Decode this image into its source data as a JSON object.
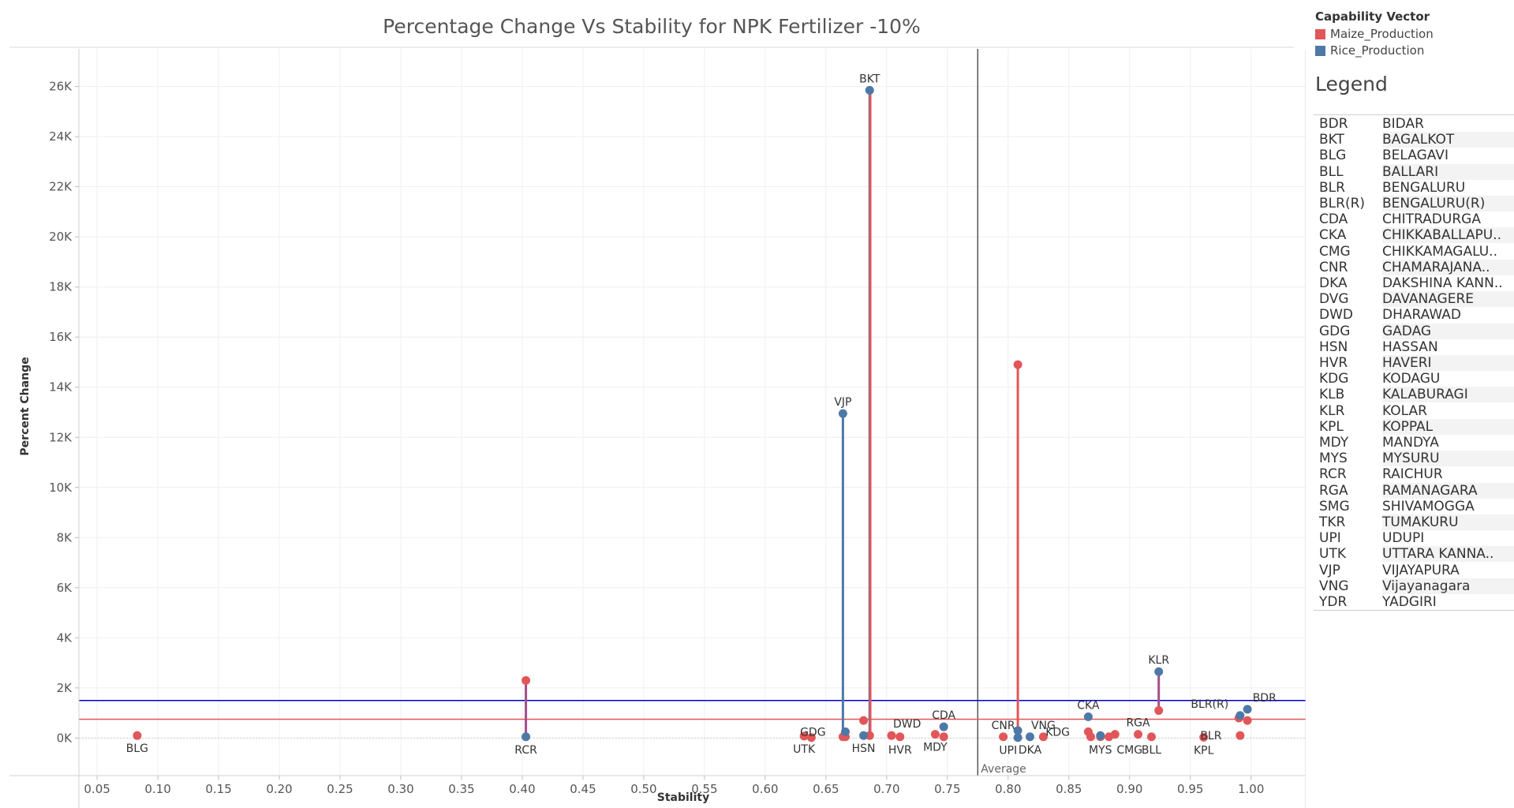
{
  "chart_data": {
    "type": "scatter",
    "title": "Percentage Change Vs Stability for NPK Fertilizer -10%",
    "xlabel": "Stability",
    "ylabel": "Percent Change",
    "xlim": [
      0.035,
      1.045
    ],
    "ylim": [
      -1500,
      27500
    ],
    "x_ticks": [
      {
        "value": 0.05,
        "label": "0.05"
      },
      {
        "value": 0.1,
        "label": "0.10"
      },
      {
        "value": 0.15,
        "label": "0.15"
      },
      {
        "value": 0.2,
        "label": "0.20"
      },
      {
        "value": 0.25,
        "label": "0.25"
      },
      {
        "value": 0.3,
        "label": "0.30"
      },
      {
        "value": 0.35,
        "label": "0.35"
      },
      {
        "value": 0.4,
        "label": "0.40"
      },
      {
        "value": 0.45,
        "label": "0.45"
      },
      {
        "value": 0.5,
        "label": "0.50"
      },
      {
        "value": 0.55,
        "label": "0.55"
      },
      {
        "value": 0.6,
        "label": "0.60"
      },
      {
        "value": 0.65,
        "label": "0.65"
      },
      {
        "value": 0.7,
        "label": "0.70"
      },
      {
        "value": 0.75,
        "label": "0.75"
      },
      {
        "value": 0.8,
        "label": "0.80"
      },
      {
        "value": 0.85,
        "label": "0.85"
      },
      {
        "value": 0.9,
        "label": "0.90"
      },
      {
        "value": 0.95,
        "label": "0.95"
      },
      {
        "value": 1.0,
        "label": "1.00"
      }
    ],
    "y_ticks": [
      {
        "value": 0,
        "label": "0K"
      },
      {
        "value": 2000,
        "label": "2K"
      },
      {
        "value": 4000,
        "label": "4K"
      },
      {
        "value": 6000,
        "label": "6K"
      },
      {
        "value": 8000,
        "label": "8K"
      },
      {
        "value": 10000,
        "label": "10K"
      },
      {
        "value": 12000,
        "label": "12K"
      },
      {
        "value": 14000,
        "label": "14K"
      },
      {
        "value": 16000,
        "label": "16K"
      },
      {
        "value": 18000,
        "label": "18K"
      },
      {
        "value": 20000,
        "label": "20K"
      },
      {
        "value": 22000,
        "label": "22K"
      },
      {
        "value": 24000,
        "label": "24K"
      },
      {
        "value": 26000,
        "label": "26K"
      }
    ],
    "grid": true,
    "legend": {
      "title": "Capability Vector",
      "position": "top-right",
      "entries": [
        {
          "name": "Maize_Production",
          "color": "#e15759"
        },
        {
          "name": "Rice_Production",
          "color": "#4e79a7"
        }
      ]
    },
    "reference_lines": {
      "average_x": {
        "value": 0.775,
        "label": "Average",
        "color": "#555555"
      },
      "rice_average_y": {
        "value": 1500,
        "color": "#0000cc"
      },
      "maize_average_y": {
        "value": 750,
        "color": "#e15759"
      }
    },
    "series": [
      {
        "name": "Maize_Production",
        "color": "#e15759",
        "points": [
          {
            "code": "BLG",
            "x": 0.083,
            "y": 100
          },
          {
            "code": "RCR",
            "x": 0.403,
            "y": 2300
          },
          {
            "code": "UTK",
            "x": 0.632,
            "y": 80
          },
          {
            "code": "UTK",
            "x": 0.638,
            "y": 20
          },
          {
            "code": "GDG",
            "x": 0.664,
            "y": 50
          },
          {
            "code": "VJP",
            "x": 0.666,
            "y": 50
          },
          {
            "code": "HSN",
            "x": 0.681,
            "y": 700
          },
          {
            "code": "BKT",
            "x": 0.686,
            "y": 100
          },
          {
            "code": "DWD",
            "x": 0.704,
            "y": 100
          },
          {
            "code": "HVR",
            "x": 0.711,
            "y": 50
          },
          {
            "code": "MDY",
            "x": 0.74,
            "y": 150
          },
          {
            "code": "CDA",
            "x": 0.747,
            "y": 50
          },
          {
            "code": "CNR",
            "x": 0.796,
            "y": 50
          },
          {
            "code": "UPI",
            "x": 0.808,
            "y": 14900
          },
          {
            "code": "VNG",
            "x": 0.829,
            "y": 50
          },
          {
            "code": "KDG",
            "x": 0.866,
            "y": 250
          },
          {
            "code": "CKA",
            "x": 0.868,
            "y": 50
          },
          {
            "code": "MYS",
            "x": 0.876,
            "y": 50
          },
          {
            "code": "MYS",
            "x": 0.883,
            "y": 50
          },
          {
            "code": "CMG",
            "x": 0.888,
            "y": 150
          },
          {
            "code": "RGA",
            "x": 0.907,
            "y": 150
          },
          {
            "code": "BLL",
            "x": 0.918,
            "y": 50
          },
          {
            "code": "KLR",
            "x": 0.924,
            "y": 1100
          },
          {
            "code": "KPL",
            "x": 0.961,
            "y": 30
          },
          {
            "code": "BLR(R)",
            "x": 0.99,
            "y": 800
          },
          {
            "code": "BLR",
            "x": 0.991,
            "y": 100
          },
          {
            "code": "BDR",
            "x": 0.997,
            "y": 700
          }
        ]
      },
      {
        "name": "Rice_Production",
        "color": "#4e79a7",
        "points": [
          {
            "code": "RCR",
            "x": 0.403,
            "y": 50
          },
          {
            "code": "VJP",
            "x": 0.664,
            "y": 12950
          },
          {
            "code": "GDG",
            "x": 0.666,
            "y": 250
          },
          {
            "code": "HSN",
            "x": 0.681,
            "y": 100
          },
          {
            "code": "BKT",
            "x": 0.686,
            "y": 25850
          },
          {
            "code": "CDA",
            "x": 0.747,
            "y": 450
          },
          {
            "code": "UPI",
            "x": 0.808,
            "y": 20
          },
          {
            "code": "CNR",
            "x": 0.808,
            "y": 300
          },
          {
            "code": "DKA",
            "x": 0.818,
            "y": 50
          },
          {
            "code": "CKA",
            "x": 0.866,
            "y": 850
          },
          {
            "code": "MYS",
            "x": 0.876,
            "y": 100
          },
          {
            "code": "KLR",
            "x": 0.924,
            "y": 2650
          },
          {
            "code": "BLR(R)",
            "x": 0.991,
            "y": 900
          },
          {
            "code": "BDR",
            "x": 0.997,
            "y": 1150
          }
        ]
      }
    ],
    "connectors": [
      {
        "x": 0.403,
        "y1": 50,
        "y2": 2300,
        "color": "#a64d8a"
      },
      {
        "x": 0.664,
        "y1": 0,
        "y2": 12950,
        "color": "#4e79a7"
      },
      {
        "x": 0.686,
        "y1": 100,
        "y2": 25850,
        "color": "#4e79a7"
      },
      {
        "x": 0.6865,
        "y1": 100,
        "y2": 25850,
        "color": "#e15759"
      },
      {
        "x": 0.808,
        "y1": 20,
        "y2": 14900,
        "color": "#e15759"
      },
      {
        "x": 0.809,
        "y1": 20,
        "y2": 300,
        "color": "#4e79a7"
      },
      {
        "x": 0.924,
        "y1": 1100,
        "y2": 2650,
        "color": "#a64d8a"
      }
    ],
    "point_labels": [
      {
        "text": "BLG",
        "x": 0.083,
        "y": 100,
        "pos": "below"
      },
      {
        "text": "RCR",
        "x": 0.403,
        "y": 50,
        "pos": "below"
      },
      {
        "text": "UTK",
        "x": 0.632,
        "y": 80,
        "pos": "below"
      },
      {
        "text": "GDG",
        "x": 0.655,
        "y": 250,
        "pos": "left"
      },
      {
        "text": "HSN",
        "x": 0.681,
        "y": 100,
        "pos": "below"
      },
      {
        "text": "DWD",
        "x": 0.704,
        "y": 100,
        "pos": "above-right"
      },
      {
        "text": "HVR",
        "x": 0.711,
        "y": 50,
        "pos": "below"
      },
      {
        "text": "MDY",
        "x": 0.74,
        "y": 150,
        "pos": "below"
      },
      {
        "text": "CDA",
        "x": 0.747,
        "y": 450,
        "pos": "above"
      },
      {
        "text": "CNR",
        "x": 0.796,
        "y": 50,
        "pos": "above"
      },
      {
        "text": "UPI",
        "x": 0.8,
        "y": 20,
        "pos": "below"
      },
      {
        "text": "DKA",
        "x": 0.818,
        "y": 50,
        "pos": "below"
      },
      {
        "text": "VNG",
        "x": 0.829,
        "y": 50,
        "pos": "above"
      },
      {
        "text": "CKA",
        "x": 0.866,
        "y": 850,
        "pos": "above"
      },
      {
        "text": "KDG",
        "x": 0.856,
        "y": 250,
        "pos": "left"
      },
      {
        "text": "MYS",
        "x": 0.876,
        "y": 50,
        "pos": "below"
      },
      {
        "text": "CMG",
        "x": 0.9,
        "y": 50,
        "pos": "below"
      },
      {
        "text": "RGA",
        "x": 0.907,
        "y": 150,
        "pos": "above"
      },
      {
        "text": "BLL",
        "x": 0.918,
        "y": 50,
        "pos": "below"
      },
      {
        "text": "KLR",
        "x": 0.924,
        "y": 2650,
        "pos": "above"
      },
      {
        "text": "KPL",
        "x": 0.961,
        "y": 30,
        "pos": "below"
      },
      {
        "text": "BLR(R)",
        "x": 0.975,
        "y": 900,
        "pos": "above-left"
      },
      {
        "text": "BDR",
        "x": 1.0,
        "y": 1150,
        "pos": "above-right"
      },
      {
        "text": "BLR",
        "x": 0.981,
        "y": 100,
        "pos": "left"
      },
      {
        "text": "BKT",
        "x": 0.686,
        "y": 25850,
        "pos": "above"
      },
      {
        "text": "VJP",
        "x": 0.664,
        "y": 12950,
        "pos": "above"
      }
    ]
  },
  "legend_table": {
    "heading": "Legend",
    "rows": [
      {
        "code": "BDR",
        "name": "BIDAR"
      },
      {
        "code": "BKT",
        "name": "BAGALKOT"
      },
      {
        "code": "BLG",
        "name": "BELAGAVI"
      },
      {
        "code": "BLL",
        "name": "BALLARI"
      },
      {
        "code": "BLR",
        "name": "BENGALURU"
      },
      {
        "code": "BLR(R)",
        "name": "BENGALURU(R)"
      },
      {
        "code": "CDA",
        "name": "CHITRADURGA"
      },
      {
        "code": "CKA",
        "name": "CHIKKABALLAPU.."
      },
      {
        "code": "CMG",
        "name": "CHIKKAMAGALU.."
      },
      {
        "code": "CNR",
        "name": "CHAMARAJANA.."
      },
      {
        "code": "DKA",
        "name": "DAKSHINA KANN.."
      },
      {
        "code": "DVG",
        "name": "DAVANAGERE"
      },
      {
        "code": "DWD",
        "name": "DHARAWAD"
      },
      {
        "code": "GDG",
        "name": "GADAG"
      },
      {
        "code": "HSN",
        "name": "HASSAN"
      },
      {
        "code": "HVR",
        "name": "HAVERI"
      },
      {
        "code": "KDG",
        "name": "KODAGU"
      },
      {
        "code": "KLB",
        "name": "KALABURAGI"
      },
      {
        "code": "KLR",
        "name": "KOLAR"
      },
      {
        "code": "KPL",
        "name": "KOPPAL"
      },
      {
        "code": "MDY",
        "name": "MANDYA"
      },
      {
        "code": "MYS",
        "name": "MYSURU"
      },
      {
        "code": "RCR",
        "name": "RAICHUR"
      },
      {
        "code": "RGA",
        "name": "RAMANAGARA"
      },
      {
        "code": "SMG",
        "name": "SHIVAMOGGA"
      },
      {
        "code": "TKR",
        "name": "TUMAKURU"
      },
      {
        "code": "UPI",
        "name": "UDUPI"
      },
      {
        "code": "UTK",
        "name": "UTTARA KANNA.."
      },
      {
        "code": "VJP",
        "name": "VIJAYAPURA"
      },
      {
        "code": "VNG",
        "name": "Vijayanagara"
      },
      {
        "code": "YDR",
        "name": "YADGIRI"
      }
    ]
  }
}
